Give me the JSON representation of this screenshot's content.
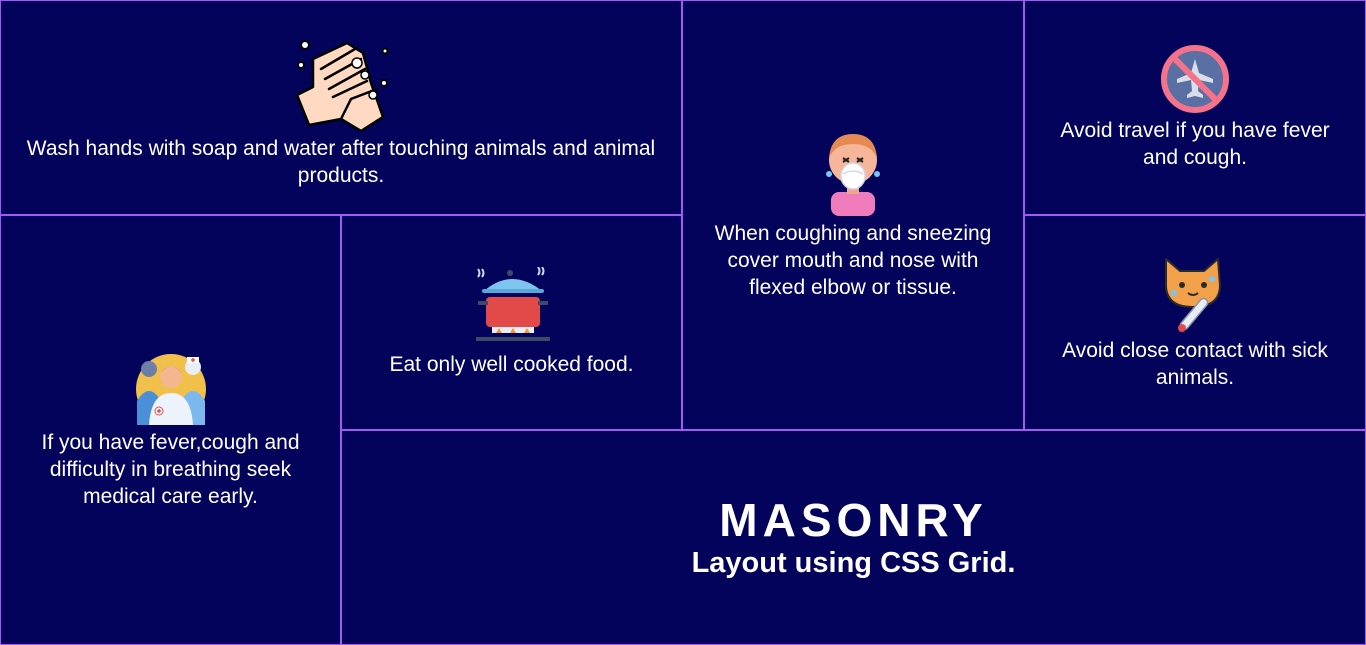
{
  "colors": {
    "background": "#03035c",
    "border": "#a05cf0",
    "text": "#ffffff"
  },
  "cards": {
    "wash": {
      "icon": "hand-washing-icon",
      "text": "Wash hands with soap and water after touching animals and animal products."
    },
    "cough": {
      "icon": "face-mask-sneezing-icon",
      "text": "When coughing and sneezing cover mouth and nose with flexed elbow or tissue."
    },
    "travel": {
      "icon": "no-airplane-icon",
      "text": "Avoid travel if you have fever and cough."
    },
    "fever": {
      "icon": "medical-staff-icon",
      "text": "If you have fever,cough and difficulty in breathing seek medical care early."
    },
    "food": {
      "icon": "cooking-pot-icon",
      "text": "Eat only well cooked food."
    },
    "sick": {
      "icon": "sick-cat-thermometer-icon",
      "text": "Avoid close contact with sick animals."
    }
  },
  "title": {
    "main": "MASONRY",
    "sub": "Layout using CSS Grid."
  }
}
